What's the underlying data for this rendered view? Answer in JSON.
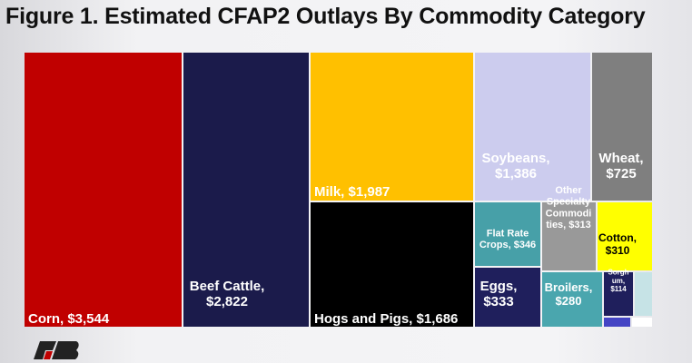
{
  "title": "Figure 1. Estimated CFAP2 Outlays By Commodity Category",
  "chart_data": {
    "type": "treemap",
    "title": "Figure 1. Estimated CFAP2 Outlays By Commodity Category",
    "units": "$ millions",
    "items": [
      {
        "name": "Corn",
        "label": "Corn, $3,544",
        "value": 3544,
        "color": "#c00000"
      },
      {
        "name": "Beef Cattle",
        "label": "Beef Cattle, $2,822",
        "value": 2822,
        "color": "#1b1b4b"
      },
      {
        "name": "Milk",
        "label": "Milk, $1,987",
        "value": 1987,
        "color": "#ffc000"
      },
      {
        "name": "Hogs and Pigs",
        "label": "Hogs and Pigs, $1,686",
        "value": 1686,
        "color": "#000000"
      },
      {
        "name": "Soybeans",
        "label": "Soybeans, $1,386",
        "value": 1386,
        "color": "#ccccee"
      },
      {
        "name": "Wheat",
        "label": "Wheat, $725",
        "value": 725,
        "color": "#7f7f7f"
      },
      {
        "name": "Flat Rate Crops",
        "label": "Flat Rate Crops, $346",
        "value": 346,
        "color": "#47a0a8"
      },
      {
        "name": "Eggs",
        "label": "Eggs, $333",
        "value": 333,
        "color": "#1f1f5c"
      },
      {
        "name": "Other Specialty Commodities",
        "label": "Other Specialty Commodities, $313",
        "value": 313,
        "color": "#999999"
      },
      {
        "name": "Cotton",
        "label": "Cotton, $310",
        "value": 310,
        "color": "#ffff00"
      },
      {
        "name": "Broilers",
        "label": "Broilers, $280",
        "value": 280,
        "color": "#4aa6ae"
      },
      {
        "name": "Sorghum",
        "label": "Sorghum, $114",
        "value": 114,
        "color": "#1f1f5c"
      },
      {
        "name": "",
        "label": "",
        "color": "#c6e3e6"
      },
      {
        "name": "",
        "label": "",
        "color": "#4444c4"
      },
      {
        "name": "",
        "label": "",
        "color": "#ffffff"
      }
    ]
  },
  "logo": {
    "icon": "farm-bureau-logo-icon"
  }
}
